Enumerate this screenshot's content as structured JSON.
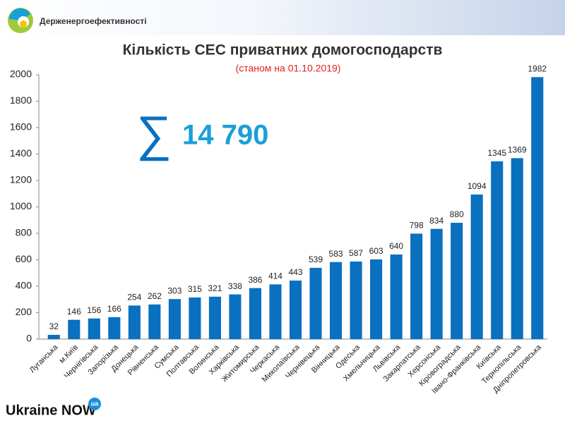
{
  "header": {
    "organization": "Держенергоефективності"
  },
  "footer": {
    "brand": "Ukraine NOW",
    "badge": "ua"
  },
  "chart_data": {
    "type": "bar",
    "title": "Кількість СЕС приватних домогосподарств",
    "subtitle": "(станом на 01.10.2019)",
    "annotations": {
      "sigma": "∑",
      "total": "14 790"
    },
    "categories": [
      "Луганська",
      "м.Київ",
      "Чернігівська",
      "Запорізька",
      "Донецька",
      "Рівненська",
      "Сумська",
      "Полтавська",
      "Волинська",
      "Харківська",
      "Житомирська",
      "Черкаська",
      "Миколаївська",
      "Чернівецька",
      "Вінницька",
      "Одеська",
      "Хмельницька",
      "Львівська",
      "Закарпатська",
      "Херсонська",
      "Кіровоградська",
      "Івано-Франківська",
      "Київська",
      "Тернопільська",
      "Дніпропетровська"
    ],
    "values": [
      32,
      146,
      156,
      166,
      254,
      262,
      303,
      315,
      321,
      338,
      386,
      414,
      443,
      539,
      583,
      587,
      603,
      640,
      798,
      834,
      880,
      1094,
      1345,
      1369,
      1982
    ],
    "color": "#0a70c0",
    "ylim": [
      0,
      2000
    ],
    "yticks": [
      0,
      200,
      400,
      600,
      800,
      1000,
      1200,
      1400,
      1600,
      1800,
      2000
    ],
    "grid": false
  }
}
